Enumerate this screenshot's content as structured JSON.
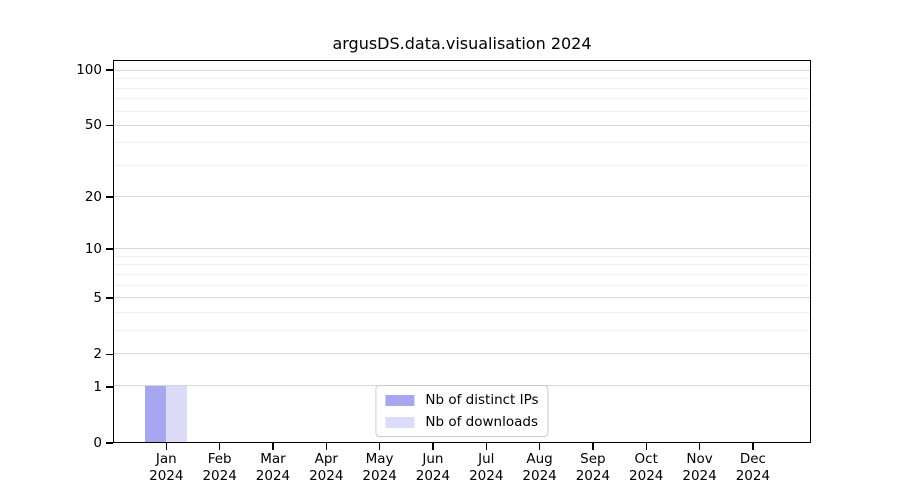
{
  "chart_data": {
    "type": "bar",
    "title": "argusDS.data.visualisation 2024",
    "xlabel": "",
    "ylabel": "",
    "categories": [
      {
        "month": "Jan",
        "year": "2024"
      },
      {
        "month": "Feb",
        "year": "2024"
      },
      {
        "month": "Mar",
        "year": "2024"
      },
      {
        "month": "Apr",
        "year": "2024"
      },
      {
        "month": "May",
        "year": "2024"
      },
      {
        "month": "Jun",
        "year": "2024"
      },
      {
        "month": "Jul",
        "year": "2024"
      },
      {
        "month": "Aug",
        "year": "2024"
      },
      {
        "month": "Sep",
        "year": "2024"
      },
      {
        "month": "Oct",
        "year": "2024"
      },
      {
        "month": "Nov",
        "year": "2024"
      },
      {
        "month": "Dec",
        "year": "2024"
      }
    ],
    "series": [
      {
        "name": "Nb of distinct IPs",
        "color": "#a7a7f1",
        "values": [
          1,
          0,
          0,
          0,
          0,
          0,
          0,
          0,
          0,
          0,
          0,
          0
        ]
      },
      {
        "name": "Nb of downloads",
        "color": "#dcdcf8",
        "values": [
          1,
          0,
          0,
          0,
          0,
          0,
          0,
          0,
          0,
          0,
          0,
          0
        ]
      }
    ],
    "y_axis": {
      "scale": "log1p",
      "ylim": [
        0,
        113
      ],
      "major_ticks": [
        0,
        1,
        2,
        5,
        10,
        20,
        50,
        100
      ],
      "minor_ticks": [
        3,
        4,
        6,
        7,
        8,
        9,
        30,
        40,
        60,
        70,
        80,
        90
      ]
    },
    "grid": "horizontal",
    "legend": {
      "position": "lower center",
      "entries": [
        "Nb of distinct IPs",
        "Nb of downloads"
      ]
    },
    "colors": {
      "major_gridline": "#d8d8d8",
      "minor_gridline": "#efefef",
      "spine": "#000000",
      "legend_border": "#cccccc",
      "background": "#ffffff"
    }
  }
}
